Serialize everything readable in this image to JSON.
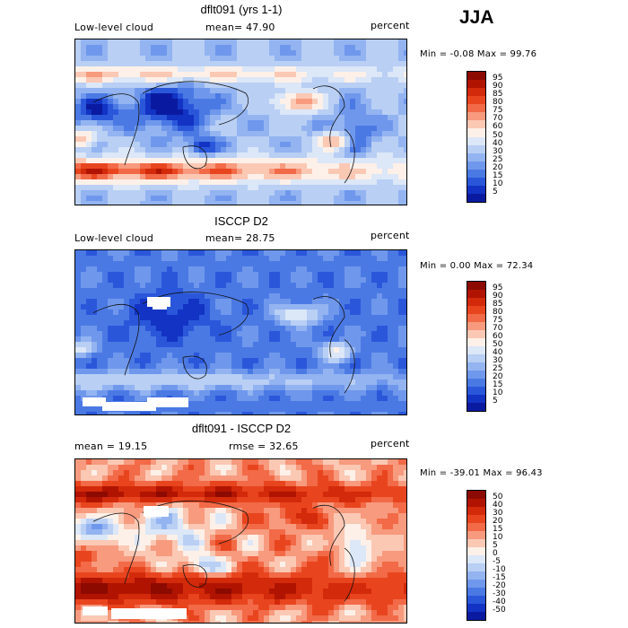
{
  "season": "JJA",
  "panels": [
    {
      "title": "dflt091 (yrs 1-1)",
      "left_label": "Low-level cloud",
      "center_label": "mean=   47.90",
      "right_label": "percent",
      "minmax": "Min =   -0.08 Max =   99.76",
      "colorbar": {
        "ticks": [
          "95",
          "90",
          "85",
          "80",
          "75",
          "70",
          "60",
          "50",
          "40",
          "30",
          "25",
          "20",
          "15",
          "10",
          "5"
        ],
        "colors": [
          "#8c0a00",
          "#b01400",
          "#d22a0a",
          "#e8451f",
          "#f26a47",
          "#f79a7e",
          "#fbc8b4",
          "#fdf0e8",
          "#dce7f7",
          "#b9cff4",
          "#93b4f1",
          "#6f98ec",
          "#4b79e4",
          "#2a57da",
          "#1233c4",
          "#0a1aa0"
        ]
      },
      "field": "cam"
    },
    {
      "title": "ISCCP D2",
      "left_label": "Low-level cloud",
      "center_label": "mean=   28.75",
      "right_label": "percent",
      "minmax": "Min =    0.00 Max =   72.34",
      "colorbar": {
        "ticks": [
          "95",
          "90",
          "85",
          "80",
          "75",
          "70",
          "60",
          "50",
          "40",
          "30",
          "25",
          "20",
          "15",
          "10",
          "5"
        ],
        "colors": [
          "#8c0a00",
          "#b01400",
          "#d22a0a",
          "#e8451f",
          "#f26a47",
          "#f79a7e",
          "#fbc8b4",
          "#fdf0e8",
          "#dce7f7",
          "#b9cff4",
          "#93b4f1",
          "#6f98ec",
          "#4b79e4",
          "#2a57da",
          "#1233c4",
          "#0a1aa0"
        ]
      },
      "field": "isccp"
    },
    {
      "title": "dflt091 - ISCCP D2",
      "left_label": "mean =   19.15",
      "center_label": "rmse =   32.65",
      "right_label": "percent",
      "minmax": "Min =  -39.01 Max =   96.43",
      "colorbar": {
        "ticks": [
          "50",
          "40",
          "30",
          "20",
          "15",
          "10",
          "5",
          "0",
          "-5",
          "-10",
          "-15",
          "-20",
          "-30",
          "-40",
          "-50"
        ],
        "colors": [
          "#8c0a00",
          "#b01400",
          "#d22a0a",
          "#e8451f",
          "#f26a47",
          "#f79a7e",
          "#fbc8b4",
          "#fdf0e8",
          "#dce7f7",
          "#b9cff4",
          "#93b4f1",
          "#6f98ec",
          "#4b79e4",
          "#2a57da",
          "#1233c4",
          "#0a1aa0"
        ]
      },
      "field": "diff"
    }
  ]
}
